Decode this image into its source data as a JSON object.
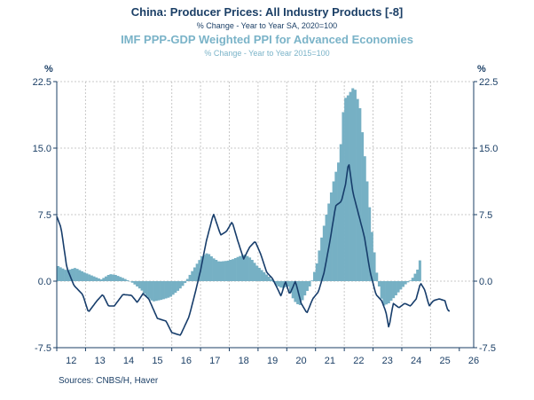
{
  "chart_data": {
    "type": "bar+line",
    "title": "China: Producer Prices: All Industry Products [-8]",
    "subtitle": "% Change - Year to Year   SA, 2020=100",
    "series2_title": "IMF PPP-GDP Weighted PPI for Advanced Economies",
    "series2_subtitle": "% Change - Year to Year   2015=100",
    "y_unit_left": "%",
    "y_unit_right": "%",
    "ylim": [
      -7.5,
      22.5
    ],
    "yticks": [
      "22.5",
      "15.0",
      "7.5",
      "0.0",
      "-7.5"
    ],
    "ytick_values": [
      22.5,
      15.0,
      7.5,
      0.0,
      -7.5
    ],
    "xlim": [
      2012.0,
      2026.5
    ],
    "xticks": [
      "12",
      "13",
      "14",
      "15",
      "16",
      "17",
      "18",
      "19",
      "20",
      "21",
      "22",
      "23",
      "24",
      "25",
      "26"
    ],
    "source": "Sources:  CNBS/H, Haver",
    "colors": {
      "bars": "#76b0c4",
      "line": "#173d6b",
      "title": "#1b3f66",
      "subtitle2": "#7ab3c8",
      "grid": "#c8c8c8"
    },
    "series": [
      {
        "name": "IMF PPP-GDP Weighted PPI for Advanced Economies",
        "kind": "bar",
        "knots": [
          [
            2012.0,
            1.7
          ],
          [
            2012.3,
            1.2
          ],
          [
            2012.6,
            1.5
          ],
          [
            2012.9,
            1.0
          ],
          [
            2013.2,
            0.6
          ],
          [
            2013.5,
            0.2
          ],
          [
            2013.8,
            0.8
          ],
          [
            2014.0,
            0.7
          ],
          [
            2014.3,
            0.3
          ],
          [
            2014.6,
            -0.2
          ],
          [
            2014.9,
            -1.0
          ],
          [
            2015.1,
            -1.8
          ],
          [
            2015.3,
            -2.3
          ],
          [
            2015.6,
            -2.1
          ],
          [
            2015.9,
            -1.8
          ],
          [
            2016.2,
            -1.0
          ],
          [
            2016.4,
            -0.3
          ],
          [
            2016.6,
            0.8
          ],
          [
            2016.8,
            1.8
          ],
          [
            2017.0,
            2.8
          ],
          [
            2017.2,
            3.2
          ],
          [
            2017.4,
            2.6
          ],
          [
            2017.6,
            2.2
          ],
          [
            2017.9,
            2.3
          ],
          [
            2018.1,
            2.5
          ],
          [
            2018.3,
            2.8
          ],
          [
            2018.5,
            3.0
          ],
          [
            2018.7,
            2.6
          ],
          [
            2018.9,
            1.8
          ],
          [
            2019.1,
            1.2
          ],
          [
            2019.4,
            0.3
          ],
          [
            2019.6,
            -0.5
          ],
          [
            2019.8,
            -0.8
          ],
          [
            2020.0,
            -0.6
          ],
          [
            2020.2,
            -2.2
          ],
          [
            2020.4,
            -2.8
          ],
          [
            2020.6,
            -1.5
          ],
          [
            2020.8,
            -0.3
          ],
          [
            2021.0,
            2.0
          ],
          [
            2021.2,
            5.5
          ],
          [
            2021.4,
            8.5
          ],
          [
            2021.6,
            11.5
          ],
          [
            2021.8,
            14.0
          ],
          [
            2021.95,
            20.5
          ],
          [
            2022.1,
            21.0
          ],
          [
            2022.3,
            22.0
          ],
          [
            2022.5,
            19.5
          ],
          [
            2022.7,
            13.0
          ],
          [
            2022.9,
            6.0
          ],
          [
            2023.1,
            0.5
          ],
          [
            2023.3,
            -2.8
          ],
          [
            2023.5,
            -2.5
          ],
          [
            2023.7,
            -1.8
          ],
          [
            2023.9,
            -1.0
          ],
          [
            2024.1,
            -0.3
          ],
          [
            2024.3,
            0.2
          ],
          [
            2024.5,
            1.3
          ],
          [
            2024.62,
            2.8
          ]
        ]
      },
      {
        "name": "China: Producer Prices: All Industry Products [-8]",
        "kind": "line",
        "knots": [
          [
            2012.0,
            7.3
          ],
          [
            2012.15,
            6.0
          ],
          [
            2012.35,
            1.5
          ],
          [
            2012.6,
            -0.5
          ],
          [
            2012.9,
            -1.5
          ],
          [
            2013.1,
            -3.5
          ],
          [
            2013.4,
            -2.2
          ],
          [
            2013.6,
            -1.5
          ],
          [
            2013.8,
            -2.8
          ],
          [
            2014.0,
            -2.8
          ],
          [
            2014.3,
            -1.5
          ],
          [
            2014.6,
            -1.6
          ],
          [
            2014.8,
            -2.4
          ],
          [
            2015.0,
            -1.4
          ],
          [
            2015.2,
            -2.0
          ],
          [
            2015.5,
            -4.2
          ],
          [
            2015.8,
            -4.5
          ],
          [
            2016.0,
            -5.8
          ],
          [
            2016.3,
            -6.1
          ],
          [
            2016.6,
            -4.0
          ],
          [
            2016.8,
            -1.5
          ],
          [
            2017.0,
            1.2
          ],
          [
            2017.2,
            4.5
          ],
          [
            2017.45,
            7.6
          ],
          [
            2017.7,
            5.2
          ],
          [
            2017.9,
            5.6
          ],
          [
            2018.1,
            6.7
          ],
          [
            2018.3,
            4.5
          ],
          [
            2018.5,
            2.5
          ],
          [
            2018.7,
            3.8
          ],
          [
            2018.9,
            4.5
          ],
          [
            2019.1,
            3.0
          ],
          [
            2019.3,
            1.0
          ],
          [
            2019.5,
            0.3
          ],
          [
            2019.7,
            -1.0
          ],
          [
            2019.8,
            -1.7
          ],
          [
            2019.95,
            0.0
          ],
          [
            2020.1,
            -1.5
          ],
          [
            2020.3,
            0.0
          ],
          [
            2020.5,
            -2.5
          ],
          [
            2020.7,
            -3.6
          ],
          [
            2020.9,
            -2.0
          ],
          [
            2021.1,
            -1.2
          ],
          [
            2021.3,
            1.0
          ],
          [
            2021.5,
            4.5
          ],
          [
            2021.7,
            8.5
          ],
          [
            2021.9,
            9.0
          ],
          [
            2022.05,
            11.0
          ],
          [
            2022.15,
            13.5
          ],
          [
            2022.3,
            10.0
          ],
          [
            2022.5,
            7.5
          ],
          [
            2022.7,
            5.0
          ],
          [
            2022.9,
            1.0
          ],
          [
            2023.1,
            -1.5
          ],
          [
            2023.3,
            -2.2
          ],
          [
            2023.45,
            -3.5
          ],
          [
            2023.55,
            -5.3
          ],
          [
            2023.7,
            -2.5
          ],
          [
            2023.9,
            -3.0
          ],
          [
            2024.1,
            -2.5
          ],
          [
            2024.3,
            -2.8
          ],
          [
            2024.5,
            -2.0
          ],
          [
            2024.65,
            -0.2
          ],
          [
            2024.8,
            -1.0
          ],
          [
            2024.95,
            -2.8
          ],
          [
            2025.1,
            -2.2
          ],
          [
            2025.3,
            -2.0
          ],
          [
            2025.5,
            -2.2
          ],
          [
            2025.6,
            -3.3
          ],
          [
            2025.7,
            -3.4
          ]
        ]
      }
    ]
  }
}
